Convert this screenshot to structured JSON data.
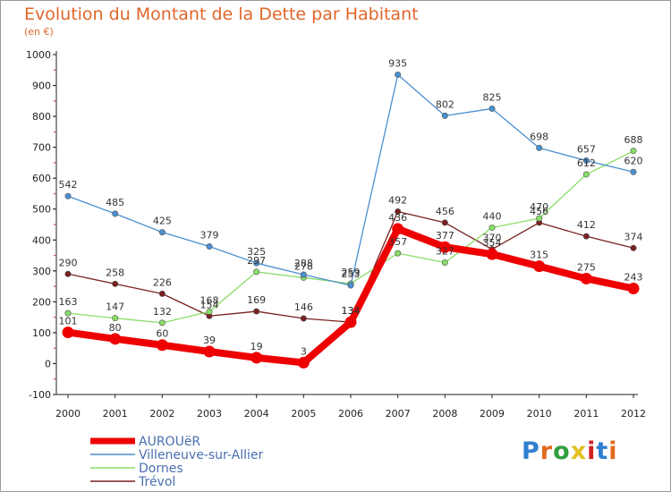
{
  "title": "Evolution du Montant de la Dette par Habitant",
  "unit": "(en €)",
  "logo": "Proxiti",
  "colors": {
    "title": "#e0662a",
    "axis": "#222222",
    "grid_dots": "#cc0000"
  },
  "chart_data": {
    "type": "line",
    "title": "Evolution du Montant de la Dette par Habitant",
    "subtitle": "(en €)",
    "xlabel": "",
    "ylabel": "",
    "x": [
      "2000",
      "2001",
      "2002",
      "2003",
      "2004",
      "2005",
      "2006",
      "2007",
      "2008",
      "2009",
      "2010",
      "2011",
      "2012"
    ],
    "ylim": [
      -100,
      1000
    ],
    "yticks": [
      -100,
      0,
      100,
      200,
      300,
      400,
      500,
      600,
      700,
      800,
      900,
      1000
    ],
    "legend_position": "bottom-left",
    "series": [
      {
        "name": "AUROUëR",
        "color": "#ee0000",
        "values": [
          101,
          80,
          60,
          39,
          19,
          3,
          134,
          436,
          377,
          354,
          315,
          275,
          243
        ]
      },
      {
        "name": "Villeneuve-sur-Allier",
        "color": "#4a8fcf",
        "values": [
          542,
          485,
          425,
          379,
          325,
          288,
          253,
          935,
          802,
          825,
          698,
          657,
          620
        ]
      },
      {
        "name": "Dornes",
        "color": "#88dd66",
        "values": [
          163,
          147,
          132,
          168,
          297,
          278,
          259,
          357,
          327,
          440,
          470,
          612,
          688
        ]
      },
      {
        "name": "Trévol",
        "color": "#7a2020",
        "values": [
          290,
          258,
          226,
          154,
          169,
          146,
          134,
          492,
          456,
          370,
          456,
          412,
          374
        ]
      }
    ]
  }
}
